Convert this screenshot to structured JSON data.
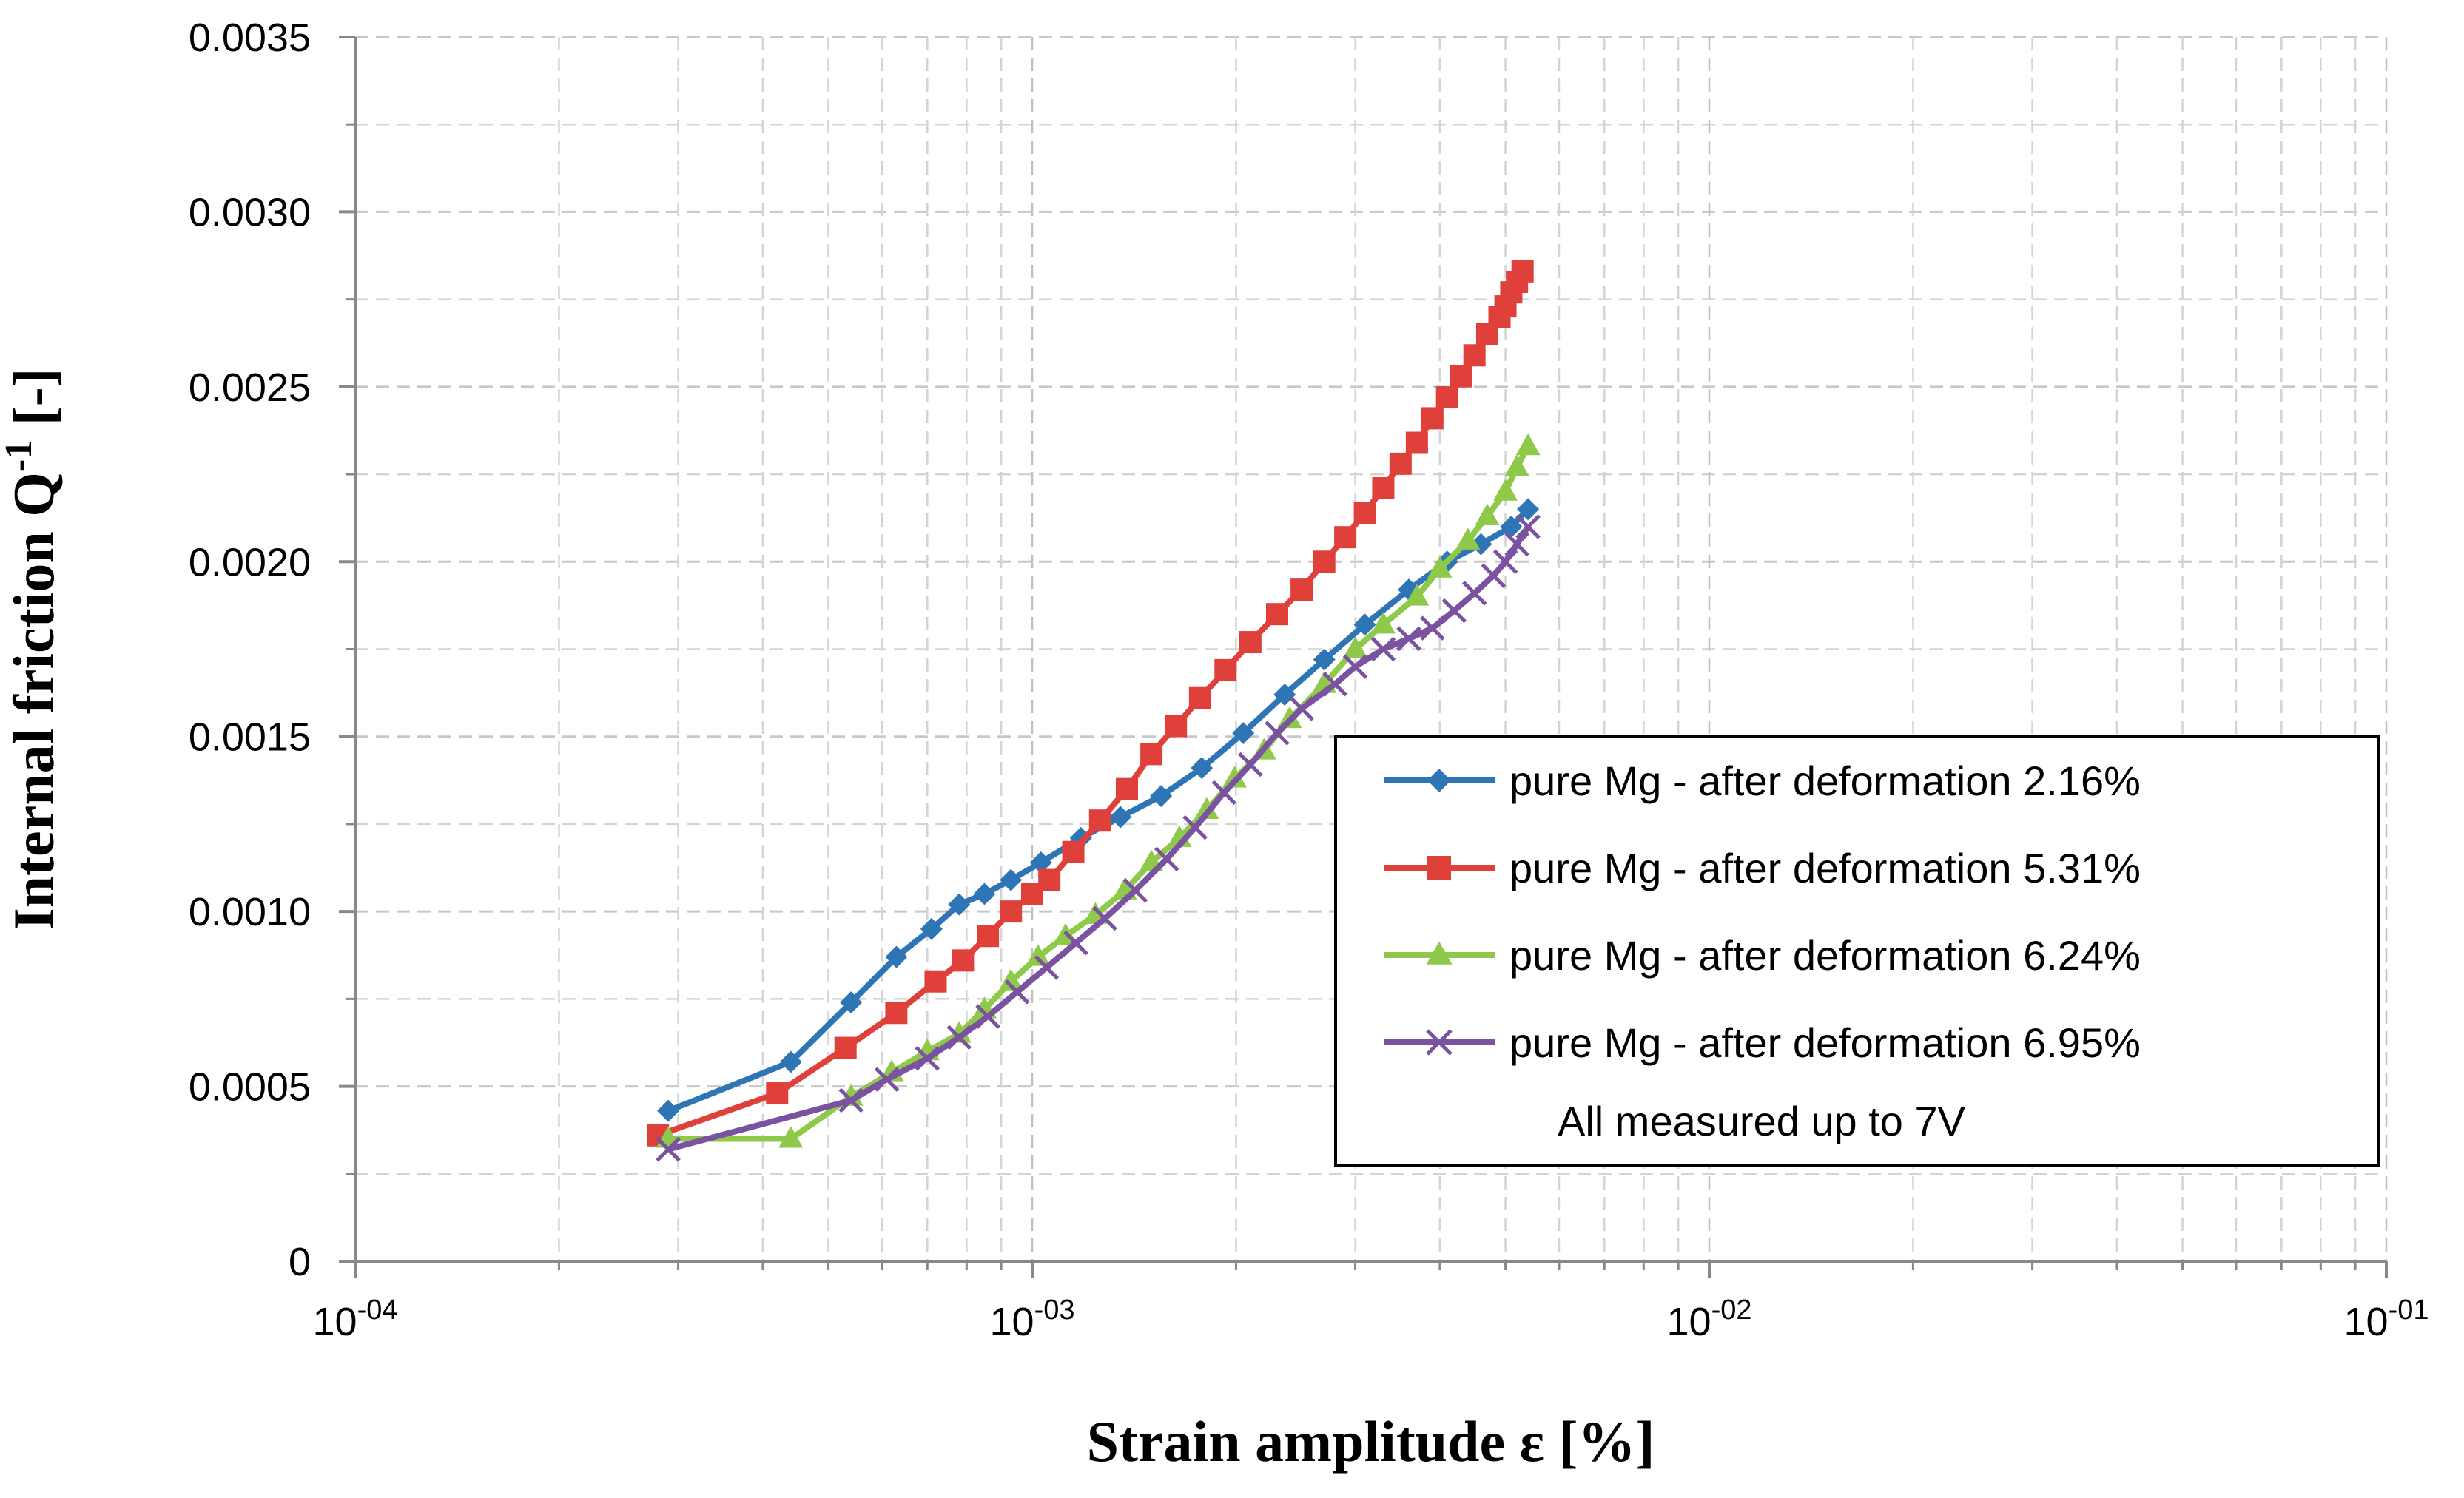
{
  "chart_data": {
    "type": "line",
    "title": "",
    "xlabel": "Strain amplitude ε [%]",
    "ylabel": "Internal friction Q",
    "ylabel_superscript": "-1",
    "ylabel_unit": " [-]",
    "xscale": "log",
    "xlim": [
      0.0001,
      0.1
    ],
    "ylim": [
      0,
      0.0035
    ],
    "grid": true,
    "x_ticks": [
      {
        "value": 0.0001,
        "base": "10",
        "exp": "-04"
      },
      {
        "value": 0.001,
        "base": "10",
        "exp": "-03"
      },
      {
        "value": 0.01,
        "base": "10",
        "exp": "-02"
      },
      {
        "value": 0.1,
        "base": "10",
        "exp": "-01"
      }
    ],
    "y_ticks": [
      {
        "value": 0,
        "label": "0"
      },
      {
        "value": 0.0005,
        "label": "0.0005"
      },
      {
        "value": 0.001,
        "label": "0.0010"
      },
      {
        "value": 0.0015,
        "label": "0.0015"
      },
      {
        "value": 0.002,
        "label": "0.0020"
      },
      {
        "value": 0.0025,
        "label": "0.0025"
      },
      {
        "value": 0.003,
        "label": "0.0030"
      },
      {
        "value": 0.0035,
        "label": "0.0035"
      }
    ],
    "legend_position": "center-right",
    "legend_note": "All measured up to 7V",
    "series": [
      {
        "name": "pure Mg - after deformation 2.16%",
        "color": "#2e75b6",
        "marker": "diamond",
        "x": [
          0.00029,
          0.00044,
          0.00054,
          0.00063,
          0.00071,
          0.00078,
          0.00085,
          0.00093,
          0.00103,
          0.00118,
          0.00135,
          0.00155,
          0.00178,
          0.00205,
          0.00236,
          0.0027,
          0.0031,
          0.0036,
          0.0041,
          0.0046,
          0.0051,
          0.0054
        ],
        "y": [
          0.00043,
          0.00057,
          0.00074,
          0.00087,
          0.00095,
          0.00102,
          0.00105,
          0.00109,
          0.00114,
          0.00121,
          0.00127,
          0.00133,
          0.00141,
          0.00151,
          0.00162,
          0.00172,
          0.00182,
          0.00192,
          0.002,
          0.00205,
          0.0021,
          0.00215
        ]
      },
      {
        "name": "pure Mg - after deformation 5.31%",
        "color": "#e0403a",
        "marker": "square",
        "x": [
          0.00028,
          0.00042,
          0.00053,
          0.00063,
          0.00072,
          0.00079,
          0.00086,
          0.00093,
          0.001,
          0.00106,
          0.00115,
          0.00126,
          0.00138,
          0.0015,
          0.00163,
          0.00177,
          0.00193,
          0.0021,
          0.0023,
          0.0025,
          0.0027,
          0.0029,
          0.0031,
          0.0033,
          0.0035,
          0.0037,
          0.0039,
          0.0041,
          0.0043,
          0.0045,
          0.0047,
          0.0049,
          0.005,
          0.0051,
          0.0052,
          0.0053
        ],
        "y": [
          0.00036,
          0.00048,
          0.00061,
          0.00071,
          0.0008,
          0.00086,
          0.00093,
          0.001,
          0.00105,
          0.00109,
          0.00117,
          0.00126,
          0.00135,
          0.00145,
          0.00153,
          0.00161,
          0.00169,
          0.00177,
          0.00185,
          0.00192,
          0.002,
          0.00207,
          0.00214,
          0.00221,
          0.00228,
          0.00234,
          0.00241,
          0.00247,
          0.00253,
          0.00259,
          0.00265,
          0.0027,
          0.00273,
          0.00277,
          0.0028,
          0.00283
        ]
      },
      {
        "name": "pure Mg - after deformation 6.24%",
        "color": "#8fc94a",
        "marker": "triangle",
        "x": [
          0.00029,
          0.00044,
          0.00054,
          0.00062,
          0.0007,
          0.00078,
          0.00085,
          0.00093,
          0.00102,
          0.00112,
          0.00124,
          0.00137,
          0.0015,
          0.00165,
          0.00181,
          0.00199,
          0.0022,
          0.0024,
          0.0027,
          0.003,
          0.0033,
          0.0037,
          0.004,
          0.0044,
          0.0047,
          0.005,
          0.0052,
          0.0054
        ],
        "y": [
          0.00035,
          0.00035,
          0.00047,
          0.00054,
          0.0006,
          0.00065,
          0.00072,
          0.0008,
          0.00087,
          0.00093,
          0.00099,
          0.00106,
          0.00114,
          0.00121,
          0.00129,
          0.00138,
          0.00146,
          0.00155,
          0.00165,
          0.00175,
          0.00182,
          0.0019,
          0.00198,
          0.00206,
          0.00213,
          0.0022,
          0.00227,
          0.00233
        ]
      },
      {
        "name": "pure Mg - after deformation 6.95%",
        "color": "#7a52a0",
        "marker": "x",
        "x": [
          0.00029,
          0.00054,
          0.00061,
          0.0007,
          0.00078,
          0.00086,
          0.00095,
          0.00105,
          0.00116,
          0.00128,
          0.00142,
          0.00158,
          0.00174,
          0.00192,
          0.0021,
          0.0023,
          0.0025,
          0.0028,
          0.003,
          0.0033,
          0.0036,
          0.0039,
          0.0042,
          0.0045,
          0.0048,
          0.005,
          0.0052,
          0.0054
        ],
        "y": [
          0.00032,
          0.00046,
          0.00052,
          0.00058,
          0.00064,
          0.0007,
          0.00077,
          0.00084,
          0.00091,
          0.00098,
          0.00106,
          0.00115,
          0.00124,
          0.00134,
          0.00142,
          0.00151,
          0.00158,
          0.00165,
          0.0017,
          0.00175,
          0.00178,
          0.00181,
          0.00186,
          0.00191,
          0.00196,
          0.002,
          0.00205,
          0.0021
        ]
      }
    ]
  }
}
